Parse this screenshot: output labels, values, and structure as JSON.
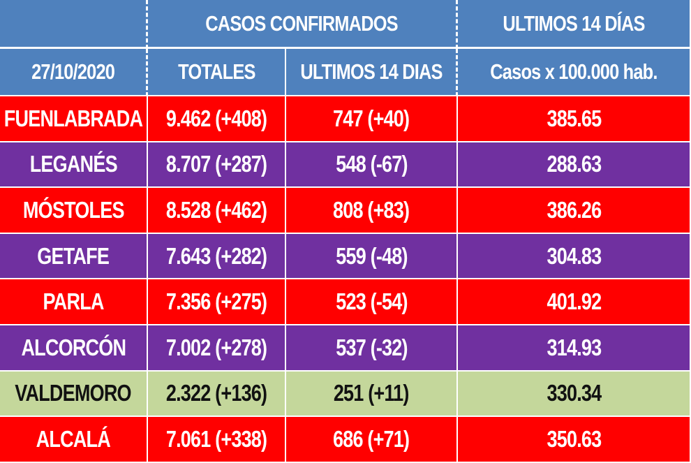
{
  "colors": {
    "header": "#4f81bd",
    "red_row": "#ff0000",
    "purple_row": "#7030a0",
    "green_row": "#c4d79b"
  },
  "header": {
    "group_confirmed": "CASOS  CONFIRMADOS",
    "group_last14": "ULTIMOS 14 DÍAS",
    "date": "27/10/2020",
    "col_totales": "TOTALES",
    "col_ultimos14": "ULTIMOS 14 DIAS",
    "col_rate": "Casos x 100.000 hab."
  },
  "rows": [
    {
      "city": "FUENLABRADA",
      "totales": "9.462 (+408)",
      "ultimos14": "747 (+40)",
      "rate": "385.65",
      "color": "red"
    },
    {
      "city": "LEGANÉS",
      "totales": "8.707 (+287)",
      "ultimos14": "548 (-67)",
      "rate": "288.63",
      "color": "purple"
    },
    {
      "city": "MÓSTOLES",
      "totales": "8.528 (+462)",
      "ultimos14": "808 (+83)",
      "rate": "386.26",
      "color": "red"
    },
    {
      "city": "GETAFE",
      "totales": "7.643 (+282)",
      "ultimos14": "559 (-48)",
      "rate": "304.83",
      "color": "purple"
    },
    {
      "city": "PARLA",
      "totales": "7.356 (+275)",
      "ultimos14": "523 (-54)",
      "rate": "401.92",
      "color": "red"
    },
    {
      "city": "ALCORCÓN",
      "totales": "7.002 (+278)",
      "ultimos14": "537 (-32)",
      "rate": "314.93",
      "color": "purple"
    },
    {
      "city": "VALDEMORO",
      "totales": "2.322 (+136)",
      "ultimos14": "251 (+11)",
      "rate": "330.34",
      "color": "green"
    },
    {
      "city": "ALCALÁ",
      "totales": "7.061 (+338)",
      "ultimos14": "686 (+71)",
      "rate": "350.63",
      "color": "red"
    }
  ]
}
